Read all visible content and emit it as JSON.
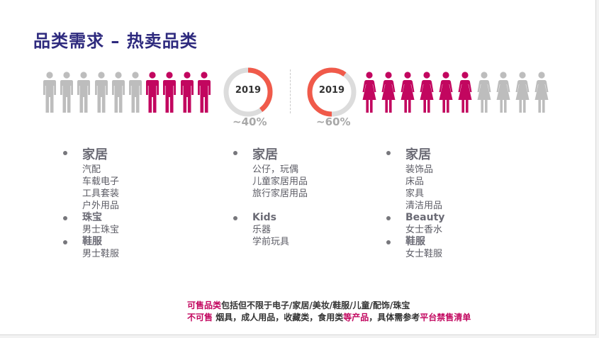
{
  "title": "品类需求 – 热卖品类",
  "colors": {
    "title": "#2e2a7e",
    "magenta": "#c2065f",
    "gray_figure": "#bdbdbd",
    "ring_accent": "#f05a4a",
    "ring_track": "#dcdcdc"
  },
  "male_group": {
    "icon": "man-icon",
    "gray_count": 6,
    "highlight_count": 4
  },
  "female_group": {
    "icon": "woman-icon",
    "highlight_count": 6,
    "gray_count": 4
  },
  "donut_left": {
    "year": "2019",
    "percent_label": "~40%",
    "fraction": 0.4
  },
  "donut_right": {
    "year": "2019",
    "percent_label": "~60%",
    "fraction": 0.6
  },
  "columns": [
    {
      "categories": [
        {
          "title": "家居",
          "items": [
            "汽配",
            "车载电子",
            "工具套装",
            "户外用品"
          ]
        },
        {
          "title": "珠宝",
          "items": [
            "男士珠宝"
          ]
        },
        {
          "title": "鞋服",
          "items": [
            "男士鞋服"
          ]
        }
      ]
    },
    {
      "categories": [
        {
          "title": "家居",
          "items": [
            "公仔，玩偶",
            "儿童家居用品",
            "旅行家居用品"
          ]
        },
        {
          "title": "Kids",
          "items": [
            "乐器",
            "学前玩具"
          ]
        }
      ]
    },
    {
      "categories": [
        {
          "title": "家居",
          "items": [
            "装饰品",
            "床品",
            "家具",
            "清洁用品"
          ]
        },
        {
          "title": "Beauty",
          "items": [
            "女士香水"
          ]
        },
        {
          "title": "鞋服",
          "items": [
            "女士鞋服"
          ]
        }
      ]
    }
  ],
  "footer": {
    "line1_prefix": "可售品类",
    "line1_text": "包括但不限于电子/家居/美妆/鞋服/儿童/配饰/珠宝",
    "line2_prefix": "不可售",
    "line2_text": " 烟具，成人用品，收藏类，食用类",
    "line2_mid": "等产品",
    "line2_text2": "，具体需参考",
    "line2_suffix": "平台禁售清单"
  }
}
